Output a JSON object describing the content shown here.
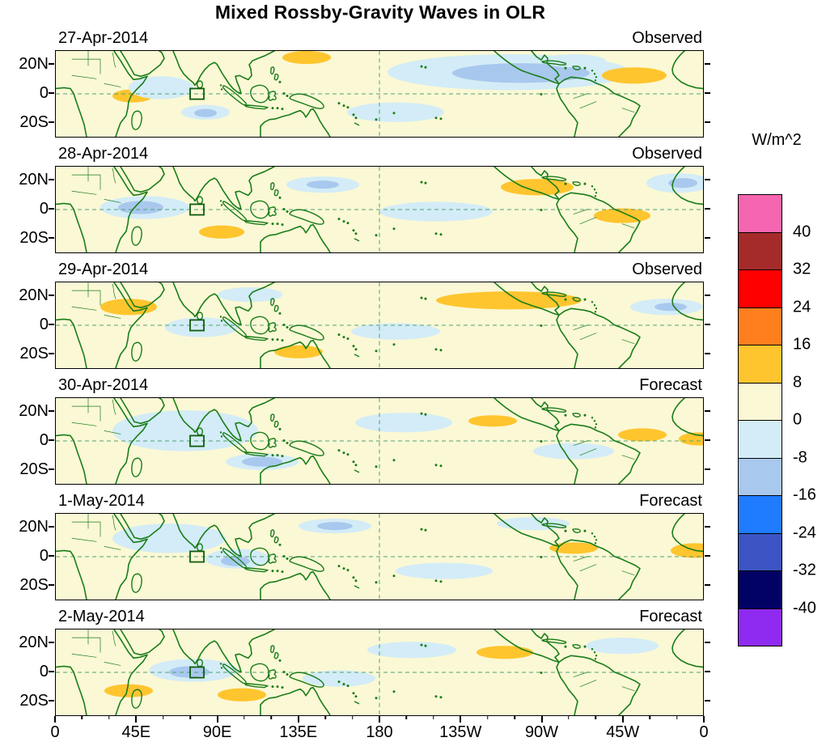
{
  "title": "Mixed Rossby-Gravity Waves in OLR",
  "chart_data": {
    "type": "heatmap",
    "title": "Mixed Rossby-Gravity Waves in OLR",
    "variable": "OLR anomaly (Mixed Rossby-Gravity wave filtered)",
    "units": "W/m^2",
    "x_range_deg": [
      0,
      360
    ],
    "y_ticks_lat": [
      20,
      0,
      -20
    ],
    "x_ticks": [
      "0",
      "45E",
      "90E",
      "135E",
      "180",
      "135W",
      "90W",
      "45W",
      "0"
    ],
    "y_ticks": [
      "20N",
      "0",
      "20S"
    ],
    "grid": "dashed equator line and dashed 180 meridian, green",
    "legend_position": "right colorbar",
    "panels": [
      {
        "date": "27-Apr-2014",
        "label": "Observed",
        "anomalies": [
          [
            560,
            26,
            150,
            22,
            "#D3ECF7"
          ],
          [
            575,
            27,
            85,
            12,
            "#A9C8EE"
          ],
          [
            310,
            8,
            30,
            8,
            "#FFC52E"
          ],
          [
            715,
            30,
            40,
            10,
            "#FFC52E"
          ],
          [
            95,
            55,
            25,
            8,
            "#FFC52E"
          ],
          [
            130,
            45,
            40,
            14,
            "#D3ECF7"
          ],
          [
            185,
            75,
            30,
            9,
            "#D3ECF7"
          ],
          [
            185,
            76,
            14,
            5,
            "#A9C8EE"
          ],
          [
            420,
            75,
            60,
            12,
            "#D3ECF7"
          ],
          [
            640,
            12,
            40,
            8,
            "#D3ECF7"
          ]
        ]
      },
      {
        "date": "28-Apr-2014",
        "label": "Observed",
        "anomalies": [
          [
            110,
            50,
            55,
            14,
            "#D3ECF7"
          ],
          [
            105,
            50,
            28,
            8,
            "#A9C8EE"
          ],
          [
            330,
            22,
            45,
            10,
            "#D3ECF7"
          ],
          [
            330,
            22,
            20,
            5,
            "#A9C8EE"
          ],
          [
            595,
            25,
            45,
            10,
            "#FFC52E"
          ],
          [
            205,
            80,
            28,
            8,
            "#FFC52E"
          ],
          [
            700,
            60,
            35,
            9,
            "#FFC52E"
          ],
          [
            470,
            55,
            70,
            12,
            "#D3ECF7"
          ],
          [
            770,
            20,
            40,
            12,
            "#D3ECF7"
          ],
          [
            775,
            20,
            18,
            6,
            "#A9C8EE"
          ]
        ]
      },
      {
        "date": "29-Apr-2014",
        "label": "Observed",
        "anomalies": [
          [
            560,
            22,
            90,
            11,
            "#FFC52E"
          ],
          [
            90,
            30,
            35,
            10,
            "#FFC52E"
          ],
          [
            755,
            30,
            45,
            10,
            "#D3ECF7"
          ],
          [
            760,
            30,
            20,
            5,
            "#A9C8EE"
          ],
          [
            300,
            85,
            30,
            8,
            "#FFC52E"
          ],
          [
            180,
            55,
            45,
            12,
            "#D3ECF7"
          ],
          [
            420,
            60,
            55,
            10,
            "#D3ECF7"
          ],
          [
            240,
            15,
            40,
            9,
            "#D3ECF7"
          ]
        ]
      },
      {
        "date": "30-Apr-2014",
        "label": "Forecast",
        "anomalies": [
          [
            160,
            40,
            90,
            25,
            "#D3ECF7"
          ],
          [
            540,
            28,
            30,
            7,
            "#FFC52E"
          ],
          [
            725,
            45,
            30,
            8,
            "#FFC52E"
          ],
          [
            255,
            78,
            45,
            10,
            "#D3ECF7"
          ],
          [
            255,
            78,
            25,
            6,
            "#A9C8EE"
          ],
          [
            430,
            30,
            60,
            12,
            "#D3ECF7"
          ],
          [
            640,
            65,
            50,
            10,
            "#D3ECF7"
          ],
          [
            795,
            50,
            25,
            8,
            "#FFC52E"
          ]
        ]
      },
      {
        "date": "1-May-2014",
        "label": "Forecast",
        "anomalies": [
          [
            345,
            15,
            45,
            9,
            "#D3ECF7"
          ],
          [
            345,
            15,
            22,
            5,
            "#A9C8EE"
          ],
          [
            640,
            42,
            30,
            7,
            "#FFC52E"
          ],
          [
            140,
            30,
            70,
            18,
            "#D3ECF7"
          ],
          [
            480,
            70,
            60,
            10,
            "#D3ECF7"
          ],
          [
            225,
            55,
            40,
            12,
            "#D3ECF7"
          ],
          [
            222,
            58,
            18,
            6,
            "#A9C8EE"
          ],
          [
            790,
            45,
            30,
            9,
            "#FFC52E"
          ],
          [
            590,
            12,
            45,
            8,
            "#D3ECF7"
          ]
        ]
      },
      {
        "date": "2-May-2014",
        "label": "Forecast",
        "anomalies": [
          [
            555,
            28,
            35,
            8,
            "#FFC52E"
          ],
          [
            230,
            80,
            30,
            8,
            "#FFC52E"
          ],
          [
            170,
            50,
            55,
            14,
            "#D3ECF7"
          ],
          [
            165,
            52,
            25,
            7,
            "#A9C8EE"
          ],
          [
            440,
            25,
            55,
            10,
            "#D3ECF7"
          ],
          [
            700,
            20,
            45,
            10,
            "#D3ECF7"
          ],
          [
            350,
            60,
            45,
            10,
            "#D3ECF7"
          ],
          [
            90,
            75,
            30,
            8,
            "#FFC52E"
          ]
        ]
      }
    ],
    "colorbar": {
      "label": "W/m^2",
      "tick_labels": [
        "40",
        "32",
        "24",
        "16",
        "8",
        "0",
        "-8",
        "-16",
        "-24",
        "-32",
        "-40"
      ],
      "colors": [
        "#F666B0",
        "#A52A2A",
        "#FF0000",
        "#FF7F1F",
        "#FFC52E",
        "#FBF8D5",
        "#D3ECF7",
        "#A9C8EE",
        "#1F7CFF",
        "#3D55C4",
        "#020264",
        "#8F2BF0"
      ]
    },
    "map": {
      "sea_color": "#FBF8D5",
      "coast_color": "#1A7D1A",
      "study_region_box": "square outline near 80E on the equator in every panel"
    }
  }
}
